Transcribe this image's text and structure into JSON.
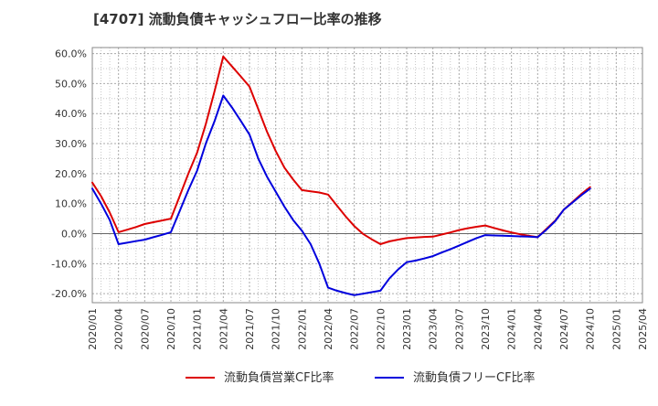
{
  "chart_data": {
    "type": "line",
    "title": "[4707]  流動負債キャッシュフロー比率の推移",
    "xlabel": "",
    "ylabel": "",
    "ylim": [
      -23,
      62
    ],
    "yticks": [
      -20,
      -10,
      0,
      10,
      20,
      30,
      40,
      50,
      60
    ],
    "ytick_labels": [
      "-20.0%",
      "-10.0%",
      "0.0%",
      "10.0%",
      "20.0%",
      "30.0%",
      "40.0%",
      "50.0%",
      "60.0%"
    ],
    "xticks": [
      "2020/01",
      "2020/04",
      "2020/07",
      "2020/10",
      "2021/01",
      "2021/04",
      "2021/07",
      "2021/10",
      "2022/01",
      "2022/04",
      "2022/07",
      "2022/10",
      "2023/01",
      "2023/04",
      "2023/07",
      "2023/10",
      "2024/01",
      "2024/04",
      "2024/07",
      "2024/10",
      "2025/01",
      "2025/04"
    ],
    "grid": true,
    "legend_position": "bottom",
    "x": [
      "2020/01",
      "2020/02",
      "2020/03",
      "2020/04",
      "2020/05",
      "2020/06",
      "2020/07",
      "2020/08",
      "2020/09",
      "2020/10",
      "2020/11",
      "2020/12",
      "2021/01",
      "2021/02",
      "2021/03",
      "2021/04",
      "2021/05",
      "2021/06",
      "2021/07",
      "2021/08",
      "2021/09",
      "2021/10",
      "2021/11",
      "2021/12",
      "2022/01",
      "2022/02",
      "2022/03",
      "2022/04",
      "2022/05",
      "2022/06",
      "2022/07",
      "2022/08",
      "2022/09",
      "2022/10",
      "2022/11",
      "2022/12",
      "2023/01",
      "2023/02",
      "2023/03",
      "2023/04",
      "2023/05",
      "2023/06",
      "2023/07",
      "2023/08",
      "2023/09",
      "2023/10",
      "2023/11",
      "2023/12",
      "2024/01",
      "2024/02",
      "2024/03",
      "2024/04",
      "2024/05",
      "2024/06",
      "2024/07",
      "2024/08",
      "2024/09",
      "2024/10"
    ],
    "series": [
      {
        "name": "流動負債営業CF比率",
        "color": "#dd0000",
        "values": [
          17,
          12.5,
          7,
          0.5,
          1.3,
          2.2,
          3.2,
          3.8,
          4.4,
          5,
          12.5,
          20,
          27,
          36.5,
          47.5,
          59,
          55.7,
          52.4,
          49,
          41.5,
          34,
          27.5,
          22,
          18,
          14.5,
          14.1,
          13.7,
          13,
          9.4,
          5.8,
          2.5,
          -0.1,
          -1.9,
          -3.5,
          -2.6,
          -2,
          -1.5,
          -1.3,
          -1.1,
          -1,
          -0.3,
          0.4,
          1.2,
          1.8,
          2.3,
          2.7,
          1.9,
          1.1,
          0.4,
          -0.2,
          -0.7,
          -1.2,
          1.6,
          4.3,
          8,
          10.6,
          13.2,
          15.5
        ]
      },
      {
        "name": "流動負債フリーCF比率",
        "color": "#0000dd",
        "values": [
          15,
          10,
          4.5,
          -3.5,
          -3,
          -2.5,
          -2,
          -1.2,
          -0.4,
          0.5,
          7.5,
          14.5,
          21,
          30,
          37.5,
          46,
          42,
          37.6,
          33,
          25,
          19,
          14,
          9,
          4.5,
          1,
          -3.5,
          -10,
          -18,
          -19,
          -19.8,
          -20.5,
          -20,
          -19.5,
          -19,
          -15,
          -12,
          -9.5,
          -9,
          -8.3,
          -7.5,
          -6.3,
          -5.2,
          -4,
          -2.7,
          -1.5,
          -0.5,
          -0.6,
          -0.7,
          -0.8,
          -0.9,
          -1,
          -1.2,
          1.3,
          4.1,
          8,
          10.4,
          12.8,
          15
        ]
      }
    ]
  }
}
